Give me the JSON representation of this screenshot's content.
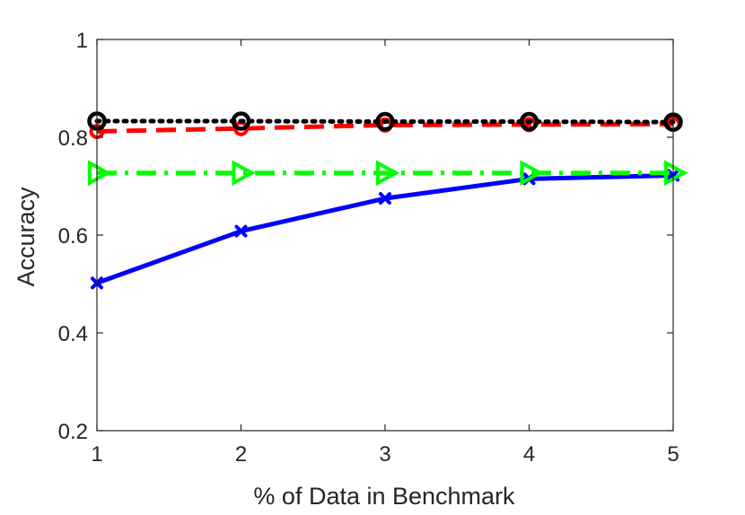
{
  "chart_data": {
    "type": "line",
    "xlabel": "% of Data in Benchmark",
    "ylabel": "Accuracy",
    "xlim": [
      1,
      5
    ],
    "ylim": [
      0.2,
      1
    ],
    "x": [
      1,
      2,
      3,
      4,
      5
    ],
    "xticks": [
      "1",
      "2",
      "3",
      "4",
      "5"
    ],
    "yticks": [
      "0.2",
      "0.4",
      "0.6",
      "0.8",
      "1"
    ],
    "grid": false,
    "series": [
      {
        "values": [
          0.502,
          0.608,
          0.675,
          0.715,
          0.722
        ],
        "color": "#0000ff",
        "line_style": "solid",
        "marker": "x"
      },
      {
        "values": [
          0.812,
          0.818,
          0.825,
          0.826,
          0.827
        ],
        "color": "#ff0000",
        "line_style": "dashed",
        "marker": "circle"
      },
      {
        "values": [
          0.833,
          0.833,
          0.832,
          0.832,
          0.831
        ],
        "color": "#000000",
        "line_style": "dotted",
        "marker": "circle"
      },
      {
        "values": [
          0.727,
          0.727,
          0.727,
          0.727,
          0.727
        ],
        "color": "#00ff00",
        "line_style": "dashdot",
        "marker": "triangle-right"
      }
    ]
  }
}
